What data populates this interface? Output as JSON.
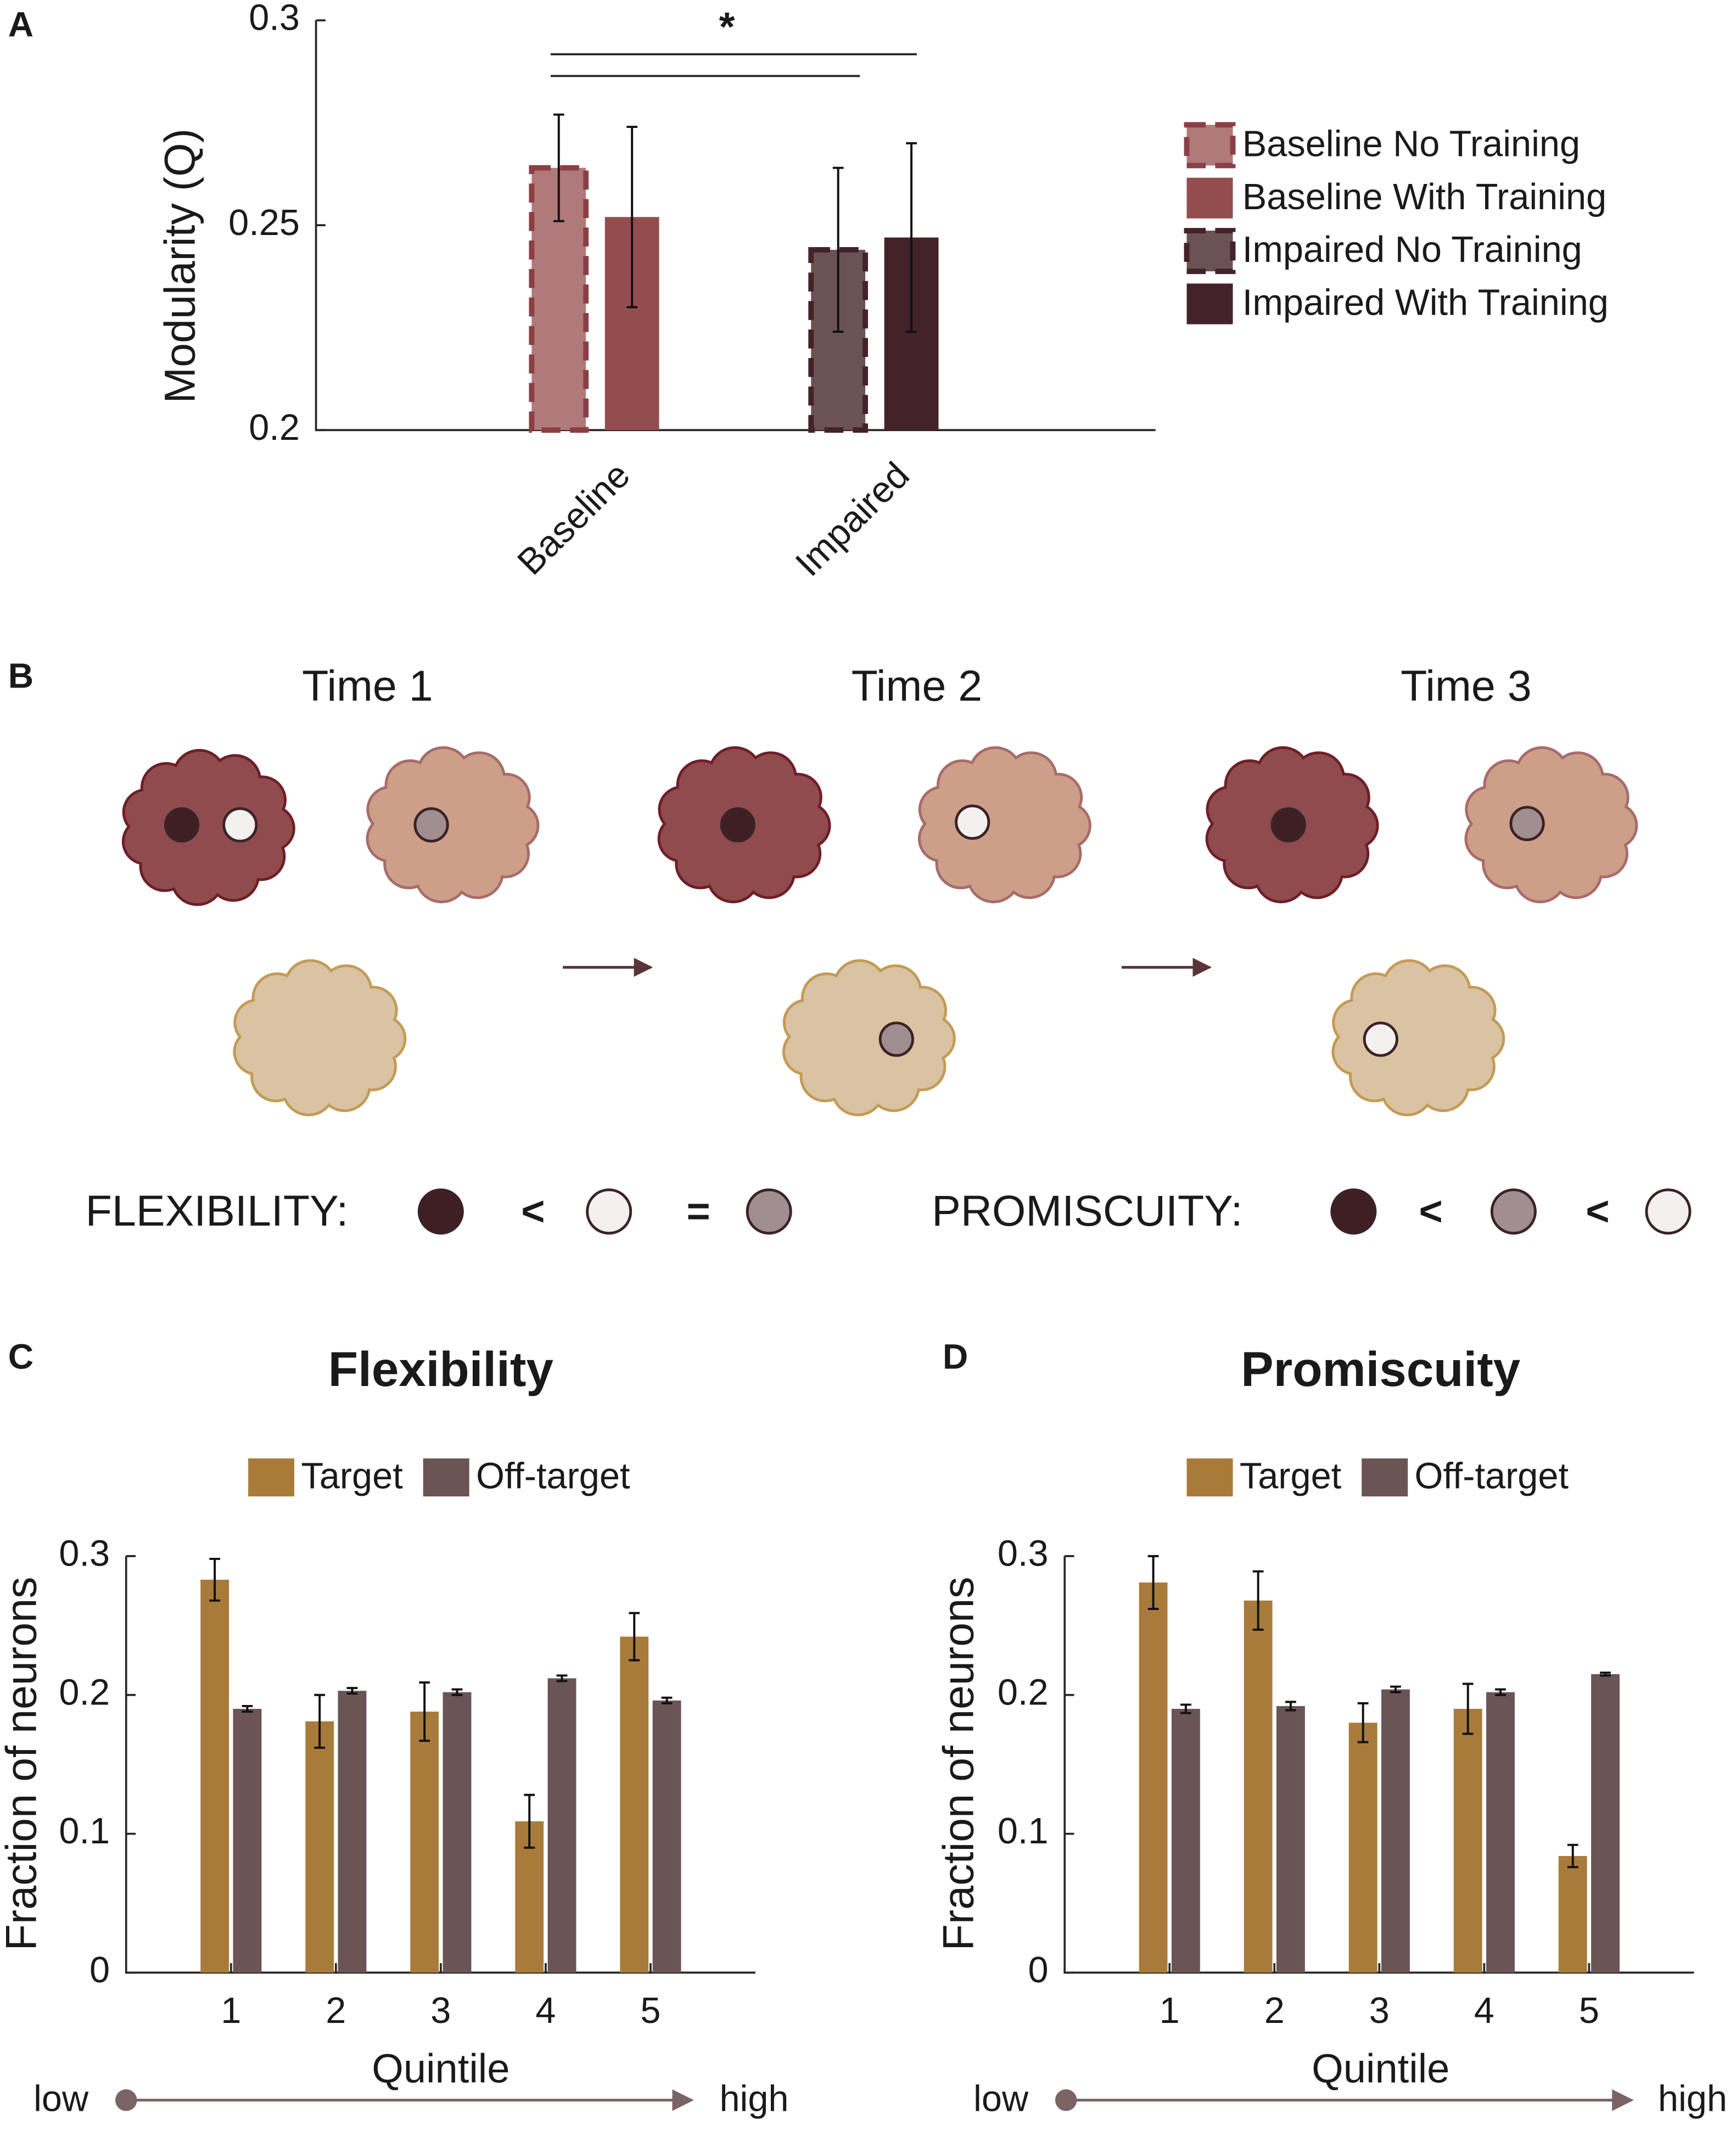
{
  "panel_labels": [
    "A",
    "B",
    "C",
    "D"
  ],
  "chart_data": [
    {
      "type": "bar",
      "ylabel": "Modularity (Q)",
      "categories": [
        "Baseline",
        "Impaired"
      ],
      "ylim": [
        0.2,
        0.3
      ],
      "yticks": [
        0.2,
        0.25,
        0.3
      ],
      "annotation": "*",
      "series": [
        {
          "name": "Baseline No Training",
          "color": "#b07a7a",
          "border_color": "#8b3f45",
          "dashed": true,
          "values": [
            0.264,
            null
          ],
          "errors": [
            0.013,
            null
          ]
        },
        {
          "name": "Baseline With Training",
          "color": "#944d4f",
          "values": [
            0.252,
            null
          ],
          "errors": [
            0.022,
            null
          ]
        },
        {
          "name": "Impaired No Training",
          "color": "#6b5254",
          "border_color": "#43222a",
          "dashed": true,
          "values": [
            null,
            0.244
          ],
          "errors": [
            null,
            0.02
          ]
        },
        {
          "name": "Impaired With Training",
          "color": "#43222a",
          "values": [
            null,
            0.247
          ],
          "errors": [
            null,
            0.023
          ]
        }
      ]
    },
    {
      "type": "bar",
      "title": "Flexibility",
      "xlabel": "Quintile",
      "ylabel": "Fraction of neurons",
      "x": [
        1,
        2,
        3,
        4,
        5
      ],
      "xlim": [
        0,
        6
      ],
      "xticks": [
        1,
        2,
        3,
        4,
        5
      ],
      "ylim": [
        0,
        0.3
      ],
      "yticks": [
        0,
        0.1,
        0.2,
        0.3
      ],
      "scale_labels": [
        "low",
        "high"
      ],
      "series": [
        {
          "name": "Target",
          "color": "#a97b3b",
          "values": [
            0.283,
            0.181,
            0.188,
            0.109,
            0.242
          ],
          "errors": [
            0.015,
            0.019,
            0.021,
            0.019,
            0.017
          ]
        },
        {
          "name": "Off-target",
          "color": "#6b5456",
          "values": [
            0.19,
            0.203,
            0.202,
            0.212,
            0.196
          ],
          "errors": [
            0.002,
            0.002,
            0.002,
            0.002,
            0.002
          ]
        }
      ]
    },
    {
      "type": "bar",
      "title": "Promiscuity",
      "xlabel": "Quintile",
      "ylabel": "Fraction of neurons",
      "x": [
        1,
        2,
        3,
        4,
        5
      ],
      "xlim": [
        0,
        6
      ],
      "xticks": [
        1,
        2,
        3,
        4,
        5
      ],
      "ylim": [
        0,
        0.3
      ],
      "yticks": [
        0,
        0.1,
        0.2,
        0.3
      ],
      "scale_labels": [
        "low",
        "high"
      ],
      "series": [
        {
          "name": "Target",
          "color": "#a97b3b",
          "values": [
            0.281,
            0.268,
            0.18,
            0.19,
            0.084
          ],
          "errors": [
            0.019,
            0.021,
            0.014,
            0.018,
            0.008
          ]
        },
        {
          "name": "Off-target",
          "color": "#6b5456",
          "values": [
            0.19,
            0.192,
            0.204,
            0.202,
            0.215
          ],
          "errors": [
            0.003,
            0.003,
            0.002,
            0.002,
            0.001
          ]
        }
      ]
    }
  ],
  "diagram": {
    "time_labels": [
      "Time 1",
      "Time 2",
      "Time 3"
    ],
    "legends": [
      {
        "label": "FLEXIBILITY:",
        "symbols": [
          "<",
          "="
        ]
      },
      {
        "label": "PROMISCUITY:",
        "symbols": [
          "<",
          "<"
        ]
      }
    ]
  }
}
